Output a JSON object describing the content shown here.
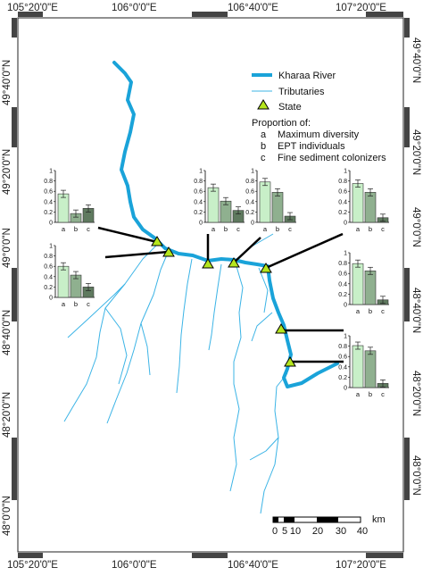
{
  "coordinates": {
    "top": [
      "105°20'0\"E",
      "106°0'0\"E",
      "106°40'0\"E",
      "107°20'0\"E"
    ],
    "bottom": [
      "105°20'0\"E",
      "106°0'0\"E",
      "106°40'0\"E",
      "107°20'0\"E"
    ],
    "left": [
      "49°40'0\"N",
      "49°20'0\"N",
      "49°0'0\"N",
      "48°40'0\"N",
      "48°20'0\"N",
      "48°0'0\"N"
    ],
    "right": [
      "49°40'0\"N",
      "49°20'0\"N",
      "49°0'0\"N",
      "48°40'0\"N",
      "48°20'0\"N",
      "48°0'0\"N"
    ]
  },
  "legend": {
    "river": "Kharaa River",
    "tributaries": "Tributaries",
    "state": "State",
    "proportion_title": "Proportion of:",
    "items": [
      {
        "key": "a",
        "label": "Maximum diversity"
      },
      {
        "key": "b",
        "label": "EPT individuals"
      },
      {
        "key": "c",
        "label": "Fine sediment colonizers"
      }
    ]
  },
  "scale_bar": {
    "labels": [
      "0",
      "5",
      "10",
      "20",
      "30",
      "40"
    ],
    "unit": "km"
  },
  "colors": {
    "river": "#1aa3d9",
    "tributary": "#3cb4e6",
    "state_marker": "#b5e61d",
    "bar_a": "#c8efc8",
    "bar_b": "#8fb08f",
    "bar_c": "#5f7a5f"
  },
  "chart_data": {
    "type": "bar",
    "categories": [
      "a",
      "b",
      "c"
    ],
    "y_ticks": [
      "0",
      "0.2",
      "0.4",
      "0.6",
      "0.8",
      "1"
    ],
    "ylim": [
      0,
      1
    ],
    "charts": [
      {
        "values": [
          0.55,
          0.17,
          0.27
        ]
      },
      {
        "values": [
          0.6,
          0.43,
          0.2
        ]
      },
      {
        "values": [
          0.67,
          0.41,
          0.23
        ]
      },
      {
        "values": [
          0.78,
          0.58,
          0.12
        ]
      },
      {
        "values": [
          0.75,
          0.58,
          0.09
        ]
      },
      {
        "values": [
          0.79,
          0.65,
          0.09
        ]
      },
      {
        "values": [
          0.81,
          0.71,
          0.08
        ]
      }
    ]
  }
}
